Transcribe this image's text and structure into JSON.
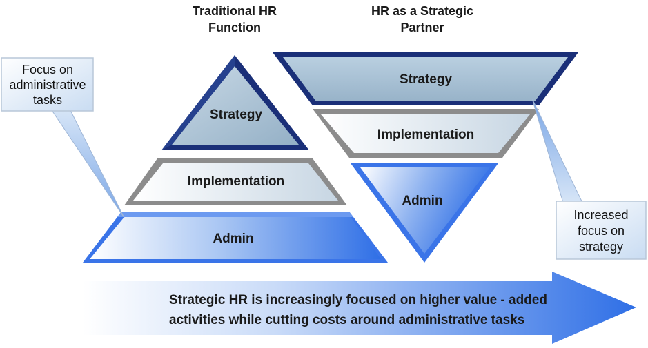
{
  "traditional": {
    "title_line1": "Traditional HR",
    "title_line2": "Function",
    "strategy": "Strategy",
    "implementation": "Implementation",
    "admin": "Admin"
  },
  "strategic": {
    "title_line1": "HR as a Strategic",
    "title_line2": "Partner",
    "strategy": "Strategy",
    "implementation": "Implementation",
    "admin": "Admin"
  },
  "callout_left": {
    "line1": "Focus on",
    "line2": "administrative",
    "line3": "tasks"
  },
  "callout_right": {
    "line1": "Increased",
    "line2": "focus on",
    "line3": "strategy"
  },
  "arrow": {
    "line1": "Strategic HR is increasingly focused on higher value - added",
    "line2": "activities while cutting costs around administrative tasks"
  },
  "colors": {
    "strategy_fill": "#a3bdd0",
    "strategy_border": "#1a2f78",
    "implementation_border": "#8c8c8c",
    "admin_blue": "#3a74e8",
    "arrow_blue": "#2f6fe6"
  }
}
